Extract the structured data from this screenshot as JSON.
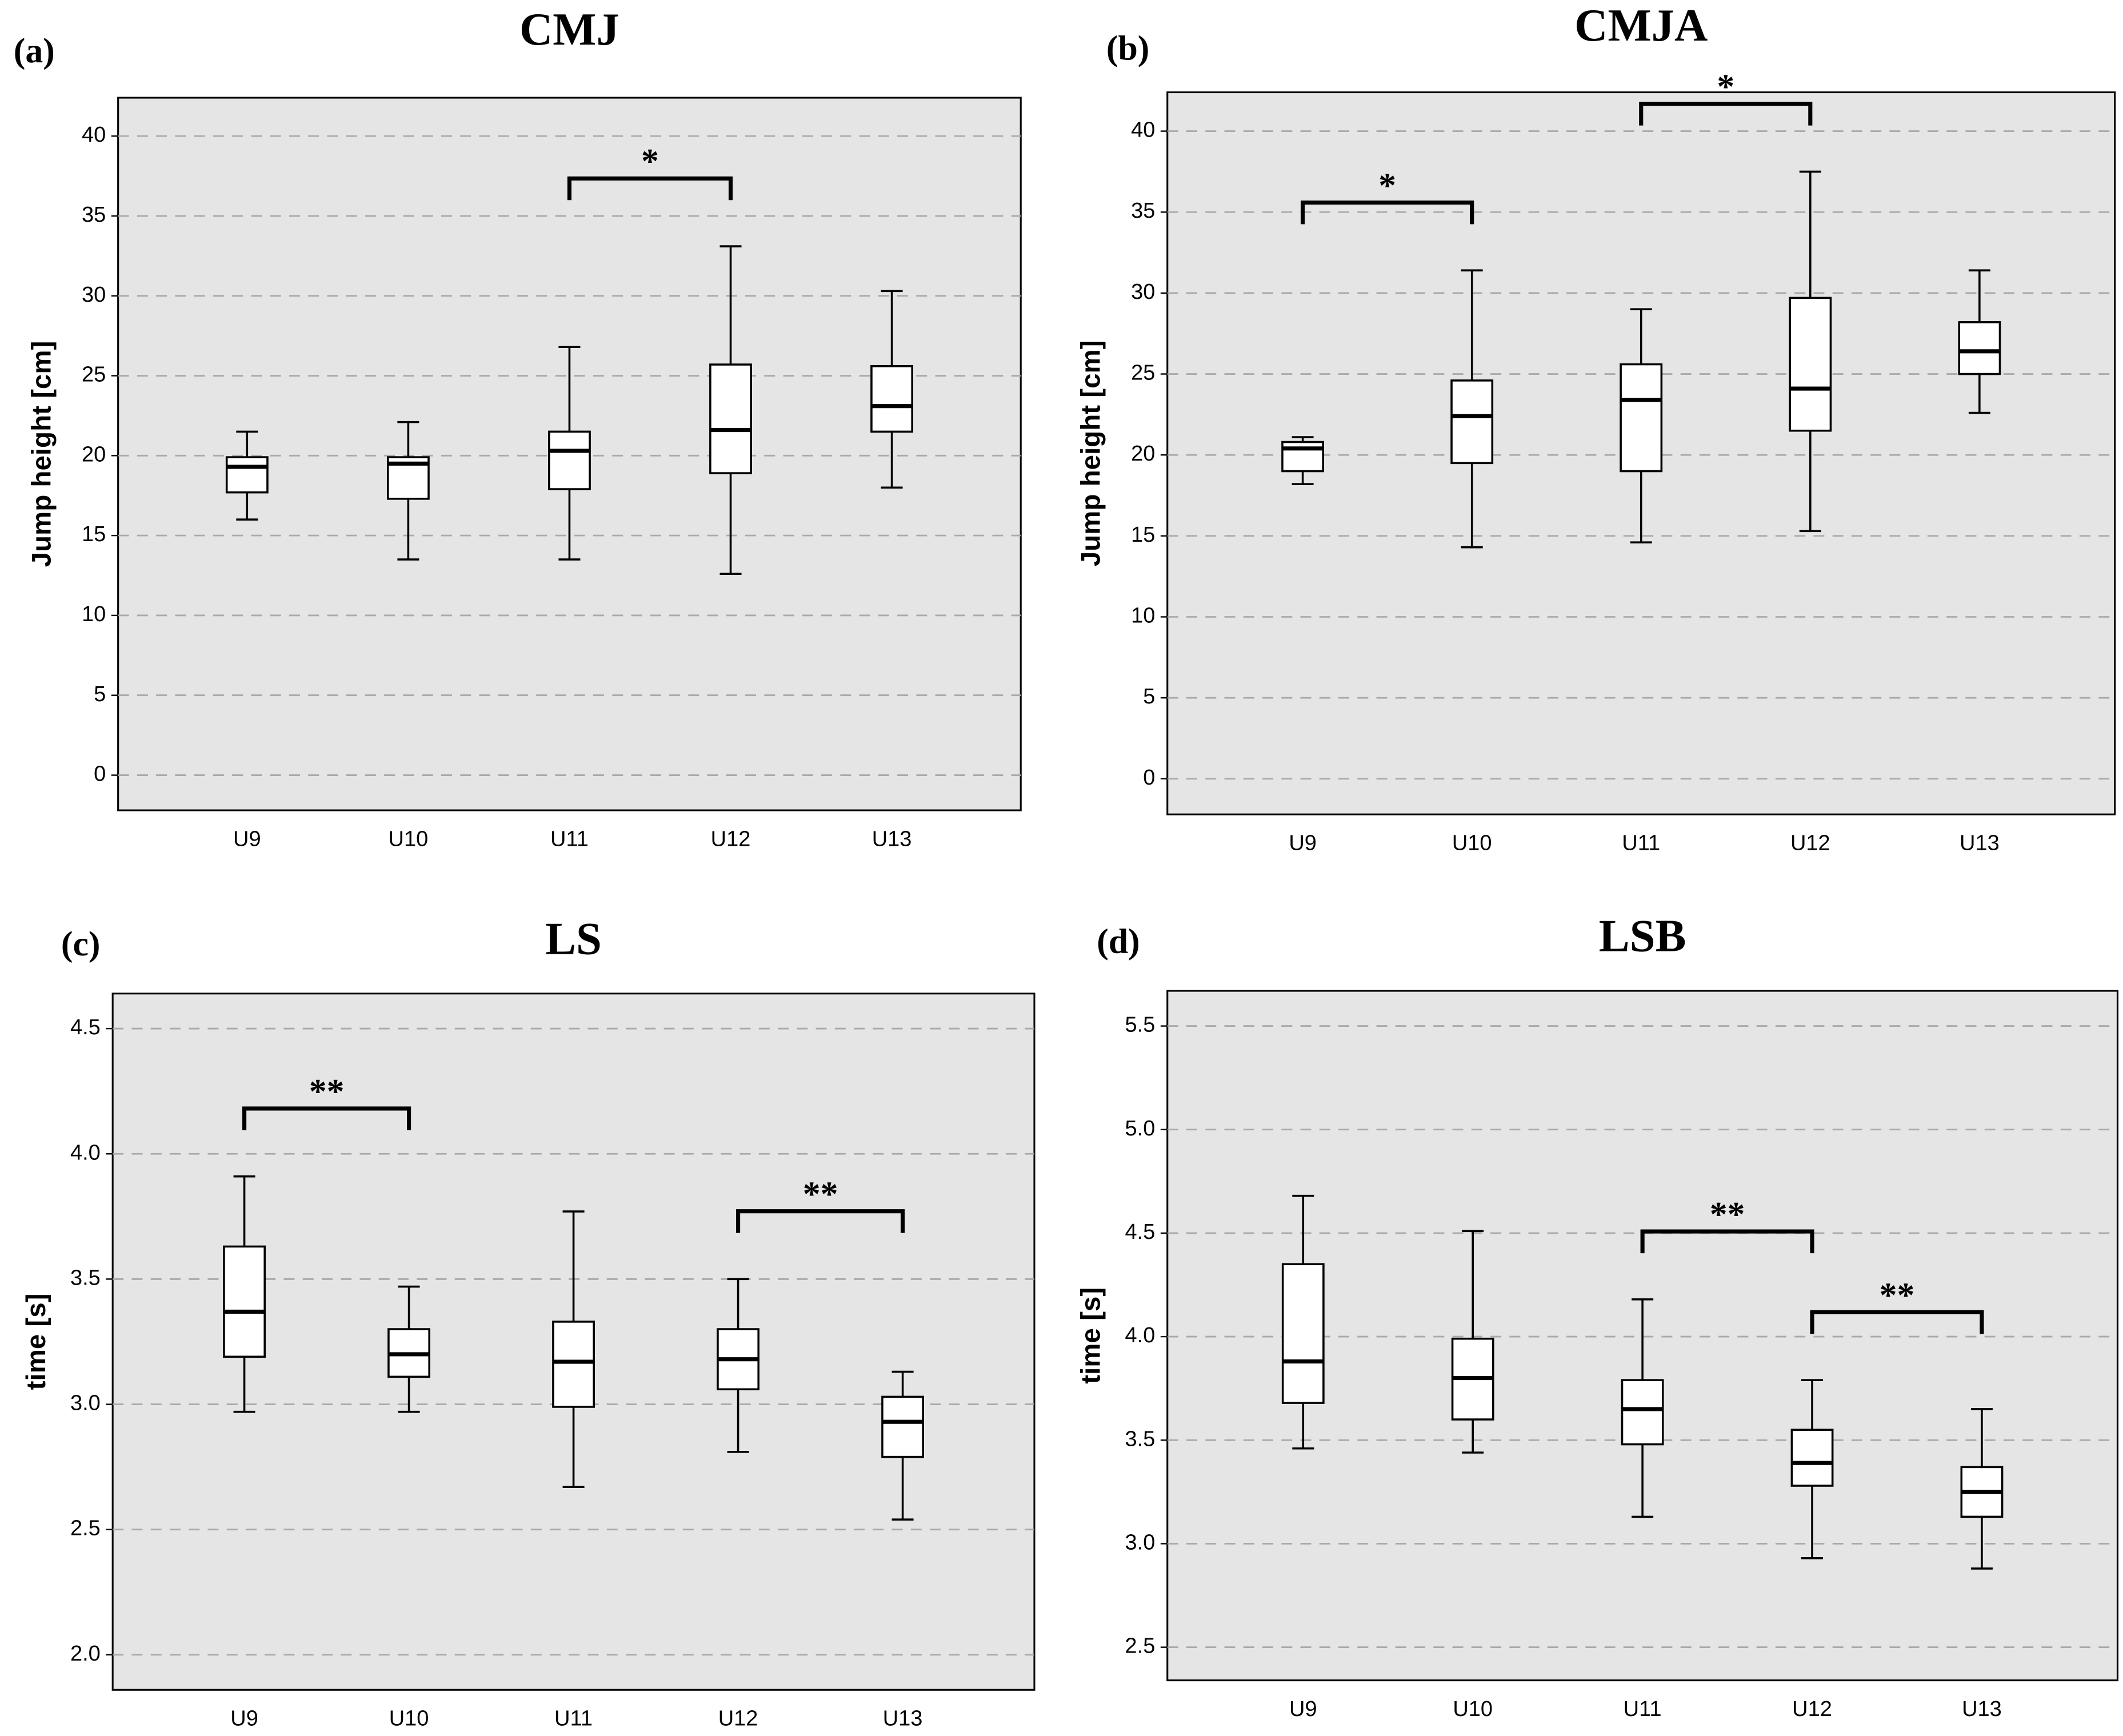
{
  "chart_data": [
    {
      "type": "box",
      "panel_label": "(a)",
      "title": "CMJ",
      "y_label": "Jump height [cm]",
      "categories": [
        "U9",
        "U10",
        "U11",
        "U12",
        "U13"
      ],
      "whisker_low": [
        16,
        13.5,
        13.5,
        12.6,
        18
      ],
      "q1": [
        17.7,
        17.3,
        17.9,
        18.9,
        21.5
      ],
      "median": [
        19.3,
        19.5,
        20.3,
        21.6,
        23.1
      ],
      "q3": [
        19.9,
        19.9,
        21.5,
        25.7,
        25.6
      ],
      "whisker_high": [
        21.5,
        22.1,
        26.8,
        33.1,
        30.3
      ],
      "ylim": [
        -2.2,
        42.4
      ],
      "yticks": [
        0,
        5,
        10,
        15,
        20,
        25,
        30,
        35,
        40
      ],
      "grid": true,
      "annotations": [
        {
          "from": "U11",
          "to": "U12",
          "label": "*"
        }
      ]
    },
    {
      "type": "box",
      "panel_label": "(b)",
      "title": "CMJA",
      "y_label": "Jump height [cm]",
      "categories": [
        "U9",
        "U10",
        "U11",
        "U12",
        "U13"
      ],
      "whisker_low": [
        18.2,
        14.3,
        14.6,
        15.3,
        22.6
      ],
      "q1": [
        19,
        19.5,
        19,
        21.5,
        25
      ],
      "median": [
        20.4,
        22.4,
        23.4,
        24.1,
        26.4
      ],
      "q3": [
        20.8,
        24.6,
        25.6,
        29.7,
        28.2
      ],
      "whisker_high": [
        21.1,
        31.4,
        29,
        37.5,
        31.4
      ],
      "ylim": [
        -2.2,
        42.4
      ],
      "yticks": [
        0,
        5,
        10,
        15,
        20,
        25,
        30,
        35,
        40
      ],
      "grid": true,
      "annotations": [
        {
          "from": "U9",
          "to": "U10",
          "label": "*"
        },
        {
          "from": "U11",
          "to": "U12",
          "label": "*"
        }
      ]
    },
    {
      "type": "box",
      "panel_label": "(c)",
      "title": "LS",
      "y_label": "time [s]",
      "categories": [
        "U9",
        "U10",
        "U11",
        "U12",
        "U13"
      ],
      "whisker_low": [
        2.97,
        2.97,
        2.67,
        2.81,
        2.54
      ],
      "q1": [
        3.19,
        3.11,
        2.99,
        3.06,
        2.79
      ],
      "median": [
        3.37,
        3.2,
        3.17,
        3.18,
        2.93
      ],
      "q3": [
        3.63,
        3.3,
        3.33,
        3.3,
        3.03
      ],
      "whisker_high": [
        3.91,
        3.47,
        3.77,
        3.5,
        3.13
      ],
      "ylim": [
        1.86,
        4.64
      ],
      "yticks": [
        {
          "value": 2,
          "label": "2.0"
        },
        2.5,
        {
          "value": 3,
          "label": "3.0"
        },
        3.5,
        {
          "value": 4,
          "label": "4.0"
        },
        4.5
      ],
      "grid": true,
      "annotations": [
        {
          "from": "U9",
          "to": "U10",
          "label": "**"
        },
        {
          "from": "U12",
          "to": "U13",
          "label": "**"
        }
      ]
    },
    {
      "type": "box",
      "panel_label": "(d)",
      "title": "LSB",
      "y_label": "time [s]",
      "categories": [
        "U9",
        "U10",
        "U11",
        "U12",
        "U13"
      ],
      "whisker_low": [
        3.46,
        3.44,
        3.13,
        2.93,
        2.88
      ],
      "q1": [
        3.68,
        3.6,
        3.48,
        3.28,
        3.13
      ],
      "median": [
        3.88,
        3.8,
        3.65,
        3.39,
        3.25
      ],
      "q3": [
        4.35,
        3.99,
        3.79,
        3.55,
        3.37
      ],
      "whisker_high": [
        4.68,
        4.51,
        4.18,
        3.79,
        3.65
      ],
      "ylim": [
        2.34,
        5.67
      ],
      "yticks": [
        2.5,
        {
          "value": 3,
          "label": "3.0"
        },
        3.5,
        {
          "value": 4,
          "label": "4.0"
        },
        4.5,
        {
          "value": 5,
          "label": "5.0"
        },
        5.5
      ],
      "grid": true,
      "annotations": [
        {
          "from": "U11",
          "to": "U12",
          "label": "**"
        },
        {
          "from": "U12",
          "to": "U13",
          "label": "**"
        }
      ]
    }
  ]
}
